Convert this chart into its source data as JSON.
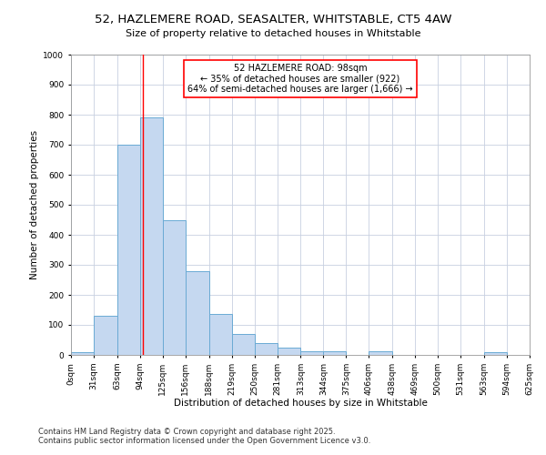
{
  "title_line1": "52, HAZLEMERE ROAD, SEASALTER, WHITSTABLE, CT5 4AW",
  "title_line2": "Size of property relative to detached houses in Whitstable",
  "xlabel": "Distribution of detached houses by size in Whitstable",
  "ylabel": "Number of detached properties",
  "bar_values": [
    8,
    130,
    700,
    790,
    450,
    280,
    135,
    70,
    40,
    25,
    12,
    12,
    0,
    12,
    0,
    0,
    0,
    0,
    8,
    0
  ],
  "bin_edges": [
    0,
    31,
    63,
    94,
    125,
    156,
    188,
    219,
    250,
    281,
    313,
    344,
    375,
    406,
    438,
    469,
    500,
    531,
    563,
    594,
    625
  ],
  "bin_labels": [
    "0sqm",
    "31sqm",
    "63sqm",
    "94sqm",
    "125sqm",
    "156sqm",
    "188sqm",
    "219sqm",
    "250sqm",
    "281sqm",
    "313sqm",
    "344sqm",
    "375sqm",
    "406sqm",
    "438sqm",
    "469sqm",
    "500sqm",
    "531sqm",
    "563sqm",
    "594sqm",
    "625sqm"
  ],
  "bar_color": "#c5d8f0",
  "bar_edge_color": "#6aaad4",
  "bar_edge_width": 0.7,
  "ref_line_x": 98,
  "ref_line_color": "red",
  "annotation_box_text": "52 HAZLEMERE ROAD: 98sqm\n← 35% of detached houses are smaller (922)\n64% of semi-detached houses are larger (1,666) →",
  "annotation_fontsize": 7,
  "annotation_box_color": "red",
  "ylim": [
    0,
    1000
  ],
  "yticks": [
    0,
    100,
    200,
    300,
    400,
    500,
    600,
    700,
    800,
    900,
    1000
  ],
  "grid_color": "#c8d0e0",
  "background_color": "#ffffff",
  "footer_line1": "Contains HM Land Registry data © Crown copyright and database right 2025.",
  "footer_line2": "Contains public sector information licensed under the Open Government Licence v3.0.",
  "title_fontsize": 9.5,
  "subtitle_fontsize": 8,
  "axis_label_fontsize": 7.5,
  "tick_fontsize": 6.5,
  "footer_fontsize": 6
}
